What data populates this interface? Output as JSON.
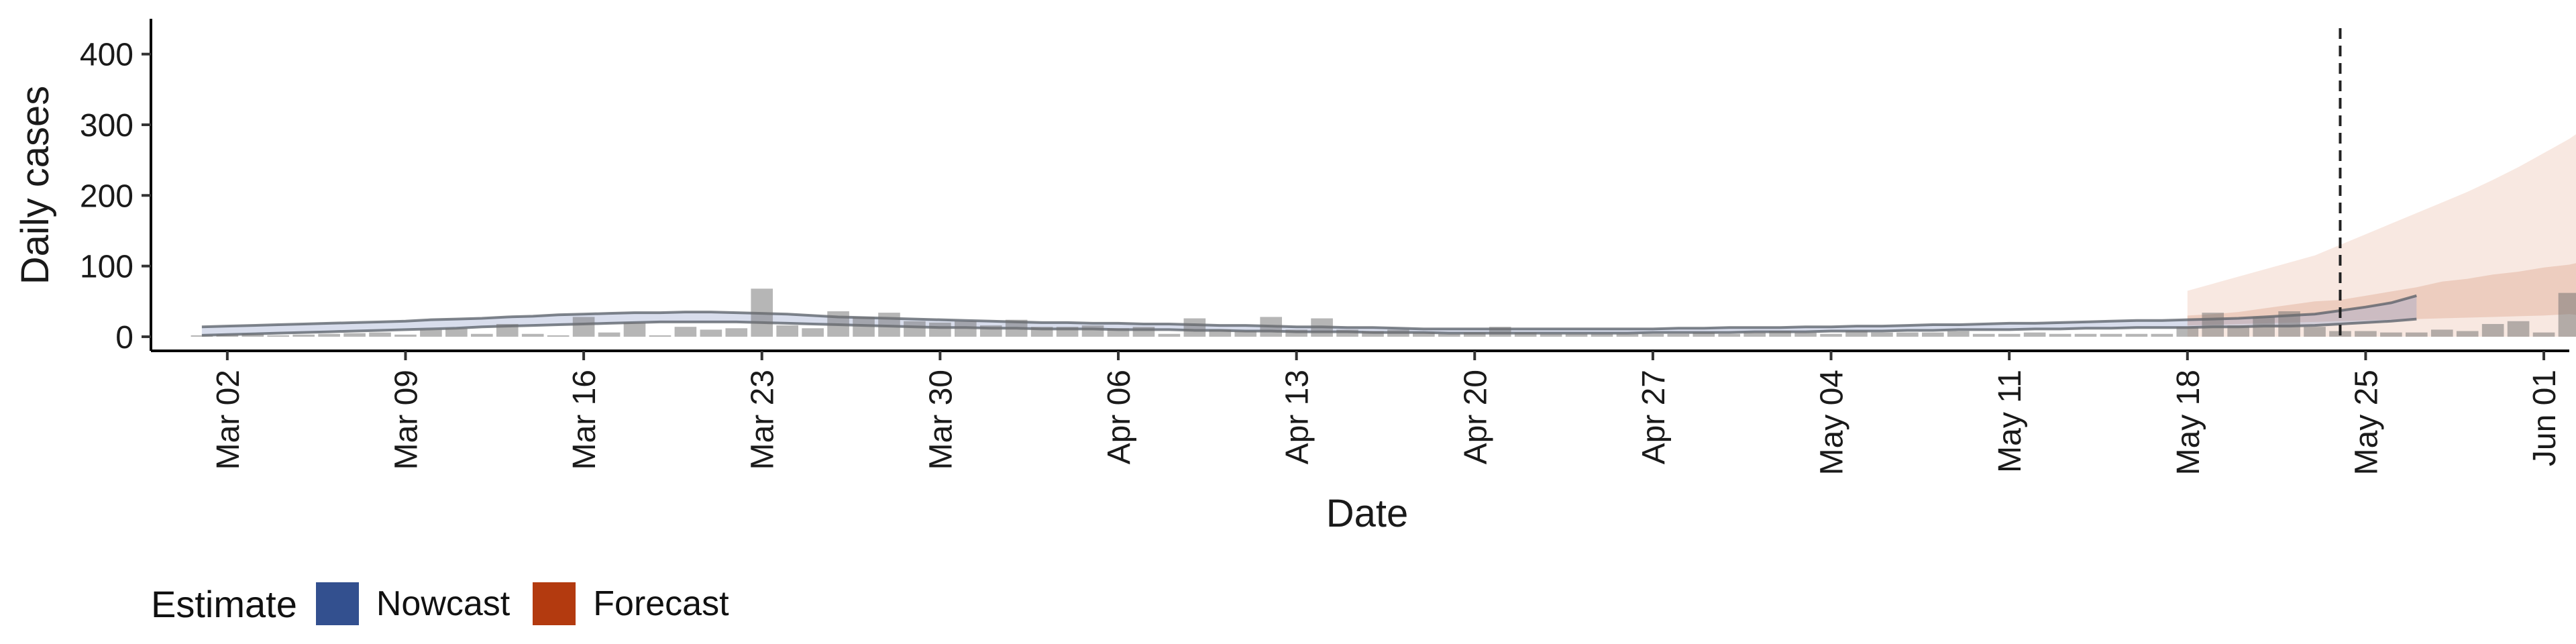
{
  "chart_data": {
    "type": "bar+area",
    "xlabel": "Date",
    "ylabel": "Daily cases",
    "ylim": [
      -20,
      450
    ],
    "xlim": [
      "2020-02-28",
      "2020-06-02"
    ],
    "y_ticks": [
      0,
      100,
      200,
      300,
      400
    ],
    "x_ticks": [
      {
        "date": "2020-03-02",
        "label": "Mar 02"
      },
      {
        "date": "2020-03-09",
        "label": "Mar 09"
      },
      {
        "date": "2020-03-16",
        "label": "Mar 16"
      },
      {
        "date": "2020-03-23",
        "label": "Mar 23"
      },
      {
        "date": "2020-03-30",
        "label": "Mar 30"
      },
      {
        "date": "2020-04-06",
        "label": "Apr 06"
      },
      {
        "date": "2020-04-13",
        "label": "Apr 13"
      },
      {
        "date": "2020-04-20",
        "label": "Apr 20"
      },
      {
        "date": "2020-04-27",
        "label": "Apr 27"
      },
      {
        "date": "2020-05-04",
        "label": "May 04"
      },
      {
        "date": "2020-05-11",
        "label": "May 11"
      },
      {
        "date": "2020-05-18",
        "label": "May 18"
      },
      {
        "date": "2020-05-25",
        "label": "May 25"
      },
      {
        "date": "2020-06-01",
        "label": "Jun 01"
      }
    ],
    "reference_line_date": "2020-05-24",
    "observed_cases": {
      "start_date": "2020-03-01",
      "color": "#a6a6a6",
      "values": [
        2,
        3,
        4,
        2,
        3,
        4,
        5,
        6,
        3,
        10,
        12,
        4,
        18,
        4,
        2,
        28,
        6,
        20,
        2,
        14,
        10,
        12,
        68,
        16,
        12,
        36,
        28,
        34,
        22,
        20,
        22,
        16,
        24,
        14,
        14,
        16,
        12,
        14,
        4,
        26,
        10,
        8,
        28,
        10,
        26,
        10,
        8,
        10,
        6,
        4,
        6,
        14,
        6,
        4,
        4,
        4,
        4,
        4,
        4,
        6,
        4,
        6,
        8,
        6,
        4,
        8,
        6,
        6,
        6,
        8,
        4,
        4,
        6,
        4,
        4,
        4,
        4,
        4,
        14,
        34,
        16,
        28,
        36,
        14,
        8,
        8,
        6,
        6,
        10,
        8,
        18,
        22,
        6,
        62,
        60,
        12
      ]
    },
    "nowcast": {
      "name": "Nowcast",
      "color": "#33508f",
      "start_date": "2020-03-01",
      "median": [
        8,
        9,
        10,
        11,
        12,
        13,
        14,
        15,
        16,
        18,
        19,
        20,
        21,
        22,
        23,
        24,
        26,
        27,
        27,
        28,
        28,
        28,
        27,
        26,
        24,
        22,
        21,
        20,
        19,
        18,
        18,
        17,
        17,
        16,
        16,
        15,
        15,
        15,
        14,
        14,
        13,
        12,
        12,
        11,
        11,
        10,
        10,
        9,
        9,
        8,
        8,
        8,
        8,
        8,
        8,
        8,
        8,
        9,
        9,
        9,
        10,
        10,
        10,
        11,
        11,
        12,
        12,
        13,
        13,
        14,
        14,
        15,
        15,
        16,
        17,
        17,
        18,
        18,
        19,
        19,
        20,
        21,
        22,
        24,
        27,
        30,
        35,
        42
      ],
      "upper": [
        14,
        15,
        16,
        17,
        18,
        19,
        20,
        21,
        22,
        24,
        25,
        26,
        28,
        29,
        31,
        32,
        33,
        34,
        34,
        35,
        35,
        34,
        33,
        32,
        30,
        28,
        27,
        26,
        25,
        24,
        23,
        22,
        21,
        20,
        20,
        19,
        19,
        18,
        18,
        17,
        16,
        16,
        15,
        14,
        14,
        13,
        13,
        12,
        11,
        11,
        11,
        11,
        11,
        11,
        11,
        11,
        11,
        11,
        12,
        12,
        13,
        13,
        13,
        14,
        14,
        15,
        15,
        16,
        17,
        17,
        18,
        19,
        19,
        20,
        21,
        22,
        23,
        23,
        24,
        25,
        26,
        28,
        30,
        32,
        37,
        42,
        48,
        58
      ],
      "lower": [
        2,
        3,
        4,
        5,
        6,
        7,
        8,
        9,
        10,
        11,
        12,
        14,
        15,
        16,
        17,
        18,
        19,
        20,
        21,
        21,
        21,
        21,
        20,
        19,
        18,
        17,
        16,
        15,
        14,
        13,
        13,
        12,
        12,
        11,
        11,
        11,
        10,
        10,
        10,
        9,
        9,
        8,
        8,
        7,
        7,
        7,
        6,
        6,
        6,
        5,
        5,
        5,
        5,
        5,
        5,
        5,
        5,
        6,
        6,
        6,
        6,
        7,
        7,
        7,
        8,
        8,
        8,
        9,
        9,
        10,
        10,
        10,
        11,
        11,
        12,
        12,
        13,
        13,
        13,
        14,
        14,
        15,
        15,
        16,
        18,
        20,
        22,
        25
      ]
    },
    "forecast": {
      "name": "Forecast",
      "color": "#b33a0f",
      "start_date": "2020-05-18",
      "outer_upper": [
        65,
        75,
        85,
        95,
        105,
        115,
        130,
        145,
        160,
        175,
        190,
        205,
        222,
        240,
        260,
        280,
        305,
        330,
        375,
        430
      ],
      "inner_upper": [
        30,
        32,
        35,
        40,
        45,
        50,
        52,
        58,
        64,
        70,
        78,
        82,
        88,
        92,
        98,
        102,
        110,
        115,
        135,
        148
      ],
      "inner_lower": [
        16,
        17,
        18,
        19,
        20,
        21,
        22,
        23,
        24,
        25,
        26,
        27,
        28,
        29,
        30,
        32,
        28,
        30,
        31,
        32
      ],
      "outer_lower": [
        0,
        0,
        0,
        0,
        0,
        0,
        0,
        0,
        0,
        0,
        0,
        0,
        0,
        0,
        0,
        0,
        0,
        0,
        0,
        0
      ]
    }
  },
  "legend": {
    "title": "Estimate",
    "items": [
      {
        "label": "Nowcast",
        "color": "#33508f"
      },
      {
        "label": "Forecast",
        "color": "#b33a0f"
      }
    ]
  }
}
